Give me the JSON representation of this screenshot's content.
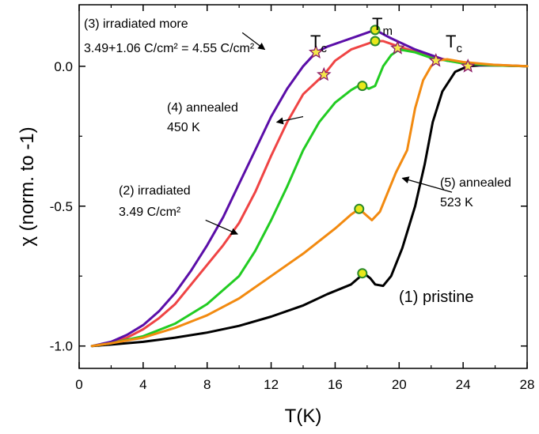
{
  "chart_data": {
    "type": "line",
    "xlabel": "T(K)",
    "ylabel": "χ (norm. to -1)",
    "xlim": [
      0,
      28
    ],
    "ylim": [
      -1.08,
      0.22
    ],
    "x_ticks": [
      0,
      4,
      8,
      12,
      16,
      20,
      24,
      28
    ],
    "y_ticks": [
      -1.0,
      -0.5,
      0.0
    ],
    "x_tick_labels": [
      "0",
      "4",
      "8",
      "12",
      "16",
      "20",
      "24",
      "28"
    ],
    "y_tick_labels": [
      "-1.0",
      "-0.5",
      "0.0"
    ],
    "grid": false,
    "legend": "none",
    "series": [
      {
        "name": "(1) pristine",
        "color": "#000000",
        "points": [
          [
            0.8,
            -1.0
          ],
          [
            2,
            -0.995
          ],
          [
            4,
            -0.985
          ],
          [
            6,
            -0.97
          ],
          [
            8,
            -0.952
          ],
          [
            10,
            -0.928
          ],
          [
            12,
            -0.895
          ],
          [
            14,
            -0.855
          ],
          [
            15.5,
            -0.815
          ],
          [
            17,
            -0.78
          ],
          [
            17.8,
            -0.74
          ],
          [
            18.2,
            -0.758
          ],
          [
            18.5,
            -0.78
          ],
          [
            19,
            -0.785
          ],
          [
            19.5,
            -0.75
          ],
          [
            20.2,
            -0.65
          ],
          [
            21,
            -0.5
          ],
          [
            21.6,
            -0.35
          ],
          [
            22.1,
            -0.2
          ],
          [
            22.7,
            -0.09
          ],
          [
            23.5,
            -0.02
          ],
          [
            24.3,
            0.0
          ],
          [
            25,
            0.003
          ],
          [
            26,
            0.003
          ],
          [
            28,
            0.0
          ]
        ]
      },
      {
        "name": "(2) irradiated",
        "color": "#ef4444",
        "points": [
          [
            0.8,
            -1.0
          ],
          [
            2,
            -0.99
          ],
          [
            3,
            -0.97
          ],
          [
            4,
            -0.94
          ],
          [
            5,
            -0.9
          ],
          [
            6,
            -0.85
          ],
          [
            7,
            -0.78
          ],
          [
            8,
            -0.71
          ],
          [
            9,
            -0.64
          ],
          [
            10,
            -0.56
          ],
          [
            11,
            -0.45
          ],
          [
            12,
            -0.32
          ],
          [
            13,
            -0.2
          ],
          [
            14,
            -0.1
          ],
          [
            15.3,
            -0.03
          ],
          [
            16,
            0.02
          ],
          [
            17,
            0.06
          ],
          [
            18.5,
            0.09
          ],
          [
            19,
            0.09
          ],
          [
            20,
            0.07
          ],
          [
            22,
            0.035
          ],
          [
            24,
            0.01
          ],
          [
            26,
            0.005
          ],
          [
            28,
            0.0
          ]
        ]
      },
      {
        "name": "(3) irradiated more",
        "color": "#5b0ea8",
        "points": [
          [
            0.8,
            -1.0
          ],
          [
            2,
            -0.985
          ],
          [
            3,
            -0.96
          ],
          [
            4,
            -0.925
          ],
          [
            5,
            -0.875
          ],
          [
            6,
            -0.81
          ],
          [
            7,
            -0.73
          ],
          [
            8,
            -0.64
          ],
          [
            9,
            -0.54
          ],
          [
            10,
            -0.42
          ],
          [
            11,
            -0.3
          ],
          [
            12,
            -0.18
          ],
          [
            13,
            -0.08
          ],
          [
            14,
            -0.0
          ],
          [
            14.8,
            0.05
          ],
          [
            15.5,
            0.07
          ],
          [
            16.5,
            0.09
          ],
          [
            17.5,
            0.11
          ],
          [
            18.5,
            0.13
          ],
          [
            19.5,
            0.1
          ],
          [
            21,
            0.06
          ],
          [
            23,
            0.02
          ],
          [
            25,
            0.005
          ],
          [
            28,
            0.0
          ]
        ]
      },
      {
        "name": "(4) annealed 450 K",
        "color": "#22cc22",
        "points": [
          [
            0.8,
            -1.0
          ],
          [
            2,
            -0.99
          ],
          [
            4,
            -0.965
          ],
          [
            6,
            -0.92
          ],
          [
            8,
            -0.85
          ],
          [
            10,
            -0.75
          ],
          [
            11,
            -0.66
          ],
          [
            12,
            -0.55
          ],
          [
            13,
            -0.43
          ],
          [
            14,
            -0.3
          ],
          [
            15,
            -0.2
          ],
          [
            16,
            -0.13
          ],
          [
            17,
            -0.085
          ],
          [
            17.6,
            -0.065
          ],
          [
            18.1,
            -0.08
          ],
          [
            18.5,
            -0.07
          ],
          [
            19,
            -0.0
          ],
          [
            19.5,
            0.04
          ],
          [
            20,
            0.06
          ],
          [
            21,
            0.05
          ],
          [
            22,
            0.03
          ],
          [
            24,
            0.01
          ],
          [
            26,
            0.003
          ],
          [
            28,
            0.0
          ]
        ]
      },
      {
        "name": "(5) annealed 523 K",
        "color": "#f28a10",
        "points": [
          [
            0.8,
            -1.0
          ],
          [
            2,
            -0.99
          ],
          [
            4,
            -0.97
          ],
          [
            6,
            -0.935
          ],
          [
            8,
            -0.89
          ],
          [
            10,
            -0.83
          ],
          [
            12,
            -0.75
          ],
          [
            14,
            -0.67
          ],
          [
            16,
            -0.58
          ],
          [
            17,
            -0.53
          ],
          [
            17.5,
            -0.51
          ],
          [
            18,
            -0.535
          ],
          [
            18.3,
            -0.55
          ],
          [
            18.8,
            -0.52
          ],
          [
            19.3,
            -0.45
          ],
          [
            19.8,
            -0.38
          ],
          [
            20.5,
            -0.3
          ],
          [
            21,
            -0.15
          ],
          [
            21.5,
            -0.05
          ],
          [
            22,
            0.0
          ],
          [
            22.3,
            0.02
          ],
          [
            23,
            0.025
          ],
          [
            24,
            0.015
          ],
          [
            26,
            0.005
          ],
          [
            28,
            0.0
          ]
        ]
      }
    ],
    "circle_markers": [
      {
        "series": "(1) pristine",
        "x": 17.7,
        "y": -0.74
      },
      {
        "series": "(5) annealed 523 K",
        "x": 17.5,
        "y": -0.51
      },
      {
        "series": "(4) annealed 450 K",
        "x": 17.7,
        "y": -0.07
      },
      {
        "series": "(2) irradiated",
        "x": 18.5,
        "y": 0.09
      },
      {
        "series": "(3) irradiated more",
        "x": 18.5,
        "y": 0.13
      }
    ],
    "star_markers": [
      {
        "series": "(3) irradiated more",
        "x": 14.8,
        "y": 0.05
      },
      {
        "series": "(2) irradiated",
        "x": 15.3,
        "y": -0.03
      },
      {
        "series": "(4) annealed 450 K",
        "x": 19.9,
        "y": 0.065
      },
      {
        "series": "(5) annealed 523 K",
        "x": 22.3,
        "y": 0.02
      },
      {
        "series": "(1) pristine",
        "x": 24.3,
        "y": 0.0
      }
    ],
    "marker_fill_circle": "#e8e81a",
    "marker_stroke_circle": "#2a8a2a",
    "marker_fill_star": "#f4e84a",
    "marker_stroke_star": "#8b1a6a"
  },
  "annotations": {
    "irradiated_more_line1": "(3) irradiated more",
    "irradiated_more_line2": "3.49+1.06 C/cm² = 4.55 C/cm²",
    "annealed450_line1": "(4) annealed",
    "annealed450_line2": "450 K",
    "irradiated_line1": "(2) irradiated",
    "irradiated_line2": "3.49 C/cm²",
    "annealed523_line1": "(5) annealed",
    "annealed523_line2": "523 K",
    "pristine": "(1) pristine",
    "tc_left": "T",
    "tc_right": "T",
    "tc_sub": "c",
    "tm": "T",
    "tm_sub": "m"
  }
}
